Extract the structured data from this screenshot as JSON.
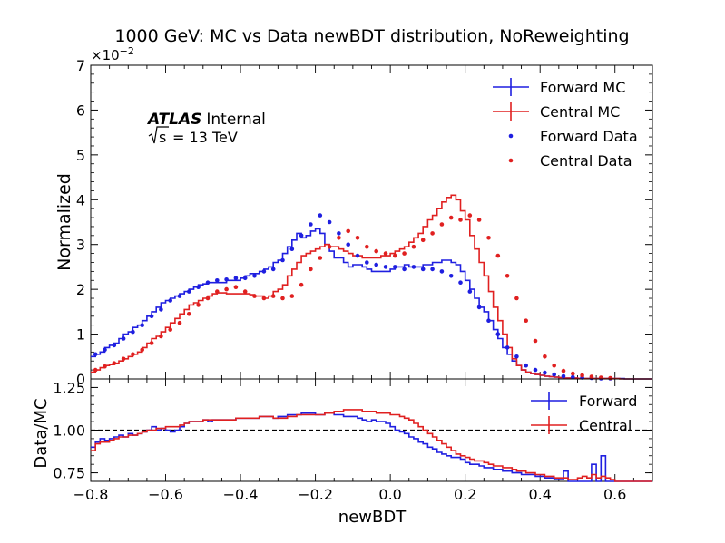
{
  "chart_data": [
    {
      "type": "line",
      "panel": "main",
      "title": "1000 GeV: MC vs Data newBDT distribution, NoReweighting",
      "xlabel": "newBDT",
      "ylabel": "Normalized",
      "scale_label": "×10",
      "scale_exponent": "−2",
      "xlim": [
        -0.8,
        0.7
      ],
      "ylim": [
        0,
        7
      ],
      "y_ticks": [
        "0",
        "1",
        "2",
        "3",
        "4",
        "5",
        "6",
        "7"
      ],
      "grid": false,
      "legend_position": "top-right",
      "annotation": {
        "experiment": "ATLAS",
        "status": "Internal",
        "sqrt_label": "s",
        "energy": "= 13 TeV"
      },
      "bin_edges": [
        -0.8,
        -0.7875,
        -0.775,
        -0.7625,
        -0.75,
        -0.7375,
        -0.725,
        -0.7125,
        -0.7,
        -0.6875,
        -0.675,
        -0.6625,
        -0.65,
        -0.6375,
        -0.625,
        -0.6125,
        -0.6,
        -0.5875,
        -0.575,
        -0.5625,
        -0.55,
        -0.5375,
        -0.525,
        -0.5125,
        -0.5,
        -0.4875,
        -0.475,
        -0.4625,
        -0.45,
        -0.4375,
        -0.425,
        -0.4125,
        -0.4,
        -0.3875,
        -0.375,
        -0.3625,
        -0.35,
        -0.3375,
        -0.325,
        -0.3125,
        -0.3,
        -0.2875,
        -0.275,
        -0.2625,
        -0.25,
        -0.2375,
        -0.225,
        -0.2125,
        -0.2,
        -0.1875,
        -0.175,
        -0.1625,
        -0.15,
        -0.1375,
        -0.125,
        -0.1125,
        -0.1,
        -0.0875,
        -0.075,
        -0.0625,
        -0.05,
        -0.0375,
        -0.025,
        -0.0125,
        0,
        0.0125,
        0.025,
        0.0375,
        0.05,
        0.0625,
        0.075,
        0.0875,
        0.1,
        0.1125,
        0.125,
        0.1375,
        0.15,
        0.1625,
        0.175,
        0.1875,
        0.2,
        0.2125,
        0.225,
        0.2375,
        0.25,
        0.2625,
        0.275,
        0.2875,
        0.3,
        0.3125,
        0.325,
        0.3375,
        0.35,
        0.3625,
        0.375,
        0.3875,
        0.4,
        0.4125,
        0.425,
        0.4375,
        0.45,
        0.4625,
        0.475,
        0.4875,
        0.5,
        0.5125,
        0.525,
        0.5375,
        0.55,
        0.5625,
        0.575,
        0.5875,
        0.6,
        0.6125,
        0.625,
        0.6375,
        0.65,
        0.6625,
        0.675,
        0.6875,
        0.7
      ],
      "series": [
        {
          "name": "Forward MC",
          "style": "step",
          "color": "#1f1fe0",
          "values": [
            0.5,
            0.55,
            0.6,
            0.7,
            0.75,
            0.8,
            0.9,
            1.0,
            1.05,
            1.15,
            1.2,
            1.3,
            1.4,
            1.5,
            1.6,
            1.7,
            1.75,
            1.8,
            1.85,
            1.9,
            1.95,
            2.0,
            2.05,
            2.1,
            2.12,
            2.15,
            2.15,
            2.15,
            2.15,
            2.2,
            2.2,
            2.2,
            2.25,
            2.3,
            2.35,
            2.35,
            2.4,
            2.45,
            2.5,
            2.6,
            2.65,
            2.8,
            2.95,
            3.1,
            3.25,
            3.15,
            3.2,
            3.3,
            3.35,
            3.25,
            3.0,
            2.85,
            2.7,
            2.7,
            2.6,
            2.5,
            2.55,
            2.55,
            2.5,
            2.45,
            2.4,
            2.4,
            2.4,
            2.4,
            2.45,
            2.5,
            2.5,
            2.55,
            2.5,
            2.5,
            2.5,
            2.55,
            2.55,
            2.6,
            2.6,
            2.65,
            2.65,
            2.6,
            2.55,
            2.4,
            2.2,
            2.0,
            1.8,
            1.6,
            1.5,
            1.3,
            1.1,
            0.9,
            0.7,
            0.55,
            0.4,
            0.3,
            0.2,
            0.15,
            0.12,
            0.1,
            0.08,
            0.06,
            0.05,
            0.04,
            0.03,
            0.02,
            0.02,
            0.02,
            0.01,
            0.01,
            0.01,
            0.01,
            0.01,
            0.01,
            0.01,
            0.01,
            0.01,
            0.01,
            0.0,
            0.0,
            0.0,
            0.0,
            0.0,
            0.0
          ]
        },
        {
          "name": "Central MC",
          "style": "step",
          "color": "#e02020",
          "values": [
            0.15,
            0.2,
            0.25,
            0.3,
            0.32,
            0.35,
            0.4,
            0.45,
            0.5,
            0.55,
            0.6,
            0.7,
            0.8,
            0.9,
            0.95,
            1.05,
            1.15,
            1.25,
            1.35,
            1.45,
            1.55,
            1.65,
            1.7,
            1.75,
            1.8,
            1.85,
            1.9,
            1.92,
            1.92,
            1.9,
            1.9,
            1.9,
            1.9,
            1.9,
            1.88,
            1.85,
            1.85,
            1.8,
            1.85,
            1.95,
            2.0,
            2.1,
            2.3,
            2.45,
            2.6,
            2.75,
            2.8,
            2.85,
            2.9,
            2.95,
            3.0,
            2.95,
            2.95,
            2.9,
            2.85,
            2.8,
            2.75,
            2.75,
            2.7,
            2.7,
            2.7,
            2.7,
            2.75,
            2.75,
            2.8,
            2.85,
            2.9,
            2.95,
            3.05,
            3.15,
            3.25,
            3.4,
            3.55,
            3.65,
            3.8,
            3.95,
            4.05,
            4.1,
            4.0,
            3.75,
            3.55,
            3.2,
            2.9,
            2.6,
            2.3,
            1.95,
            1.6,
            1.3,
            1.0,
            0.7,
            0.45,
            0.3,
            0.2,
            0.15,
            0.12,
            0.1,
            0.08,
            0.06,
            0.05,
            0.04,
            0.03,
            0.02,
            0.02,
            0.02,
            0.01,
            0.01,
            0.01,
            0.01,
            0.01,
            0.01,
            0.01,
            0.01,
            0.01,
            0.0,
            0.0,
            0.0,
            0.0,
            0.0,
            0.0,
            0.0
          ]
        },
        {
          "name": "Forward Data",
          "style": "points",
          "color": "#1f1fe0",
          "x": [
            -0.7875,
            -0.7625,
            -0.7375,
            -0.7125,
            -0.6875,
            -0.6625,
            -0.6375,
            -0.6125,
            -0.5875,
            -0.5625,
            -0.5375,
            -0.5125,
            -0.4875,
            -0.4625,
            -0.4375,
            -0.4125,
            -0.3875,
            -0.3625,
            -0.3375,
            -0.3125,
            -0.2875,
            -0.2625,
            -0.2375,
            -0.2125,
            -0.1875,
            -0.1625,
            -0.1375,
            -0.1125,
            -0.0875,
            -0.0625,
            -0.0375,
            -0.0125,
            0.0125,
            0.0375,
            0.0625,
            0.0875,
            0.1125,
            0.1375,
            0.1625,
            0.1875,
            0.2125,
            0.2375,
            0.2625,
            0.2875,
            0.3125,
            0.3375,
            0.3625,
            0.3875,
            0.4125,
            0.4375,
            0.4625,
            0.4875,
            0.5125,
            0.5375,
            0.5625,
            0.5875
          ],
          "y": [
            0.55,
            0.65,
            0.75,
            0.9,
            1.05,
            1.2,
            1.4,
            1.55,
            1.75,
            1.85,
            1.95,
            2.05,
            2.15,
            2.2,
            2.22,
            2.25,
            2.25,
            2.3,
            2.4,
            2.45,
            2.65,
            2.9,
            3.2,
            3.45,
            3.65,
            3.5,
            3.25,
            3.0,
            2.75,
            2.6,
            2.55,
            2.5,
            2.5,
            2.45,
            2.5,
            2.45,
            2.45,
            2.4,
            2.3,
            2.15,
            1.95,
            1.6,
            1.3,
            1.0,
            0.7,
            0.5,
            0.3,
            0.2,
            0.14,
            0.1,
            0.06,
            0.04,
            0.03,
            0.02,
            0.01,
            0.01
          ]
        },
        {
          "name": "Central Data",
          "style": "points",
          "color": "#e02020",
          "x": [
            -0.7875,
            -0.7625,
            -0.7375,
            -0.7125,
            -0.6875,
            -0.6625,
            -0.6375,
            -0.6125,
            -0.5875,
            -0.5625,
            -0.5375,
            -0.5125,
            -0.4875,
            -0.4625,
            -0.4375,
            -0.4125,
            -0.3875,
            -0.3625,
            -0.3375,
            -0.3125,
            -0.2875,
            -0.2625,
            -0.2375,
            -0.2125,
            -0.1875,
            -0.1625,
            -0.1375,
            -0.1125,
            -0.0875,
            -0.0625,
            -0.0375,
            -0.0125,
            0.0125,
            0.0375,
            0.0625,
            0.0875,
            0.1125,
            0.1375,
            0.1625,
            0.1875,
            0.2125,
            0.2375,
            0.2625,
            0.2875,
            0.3125,
            0.3375,
            0.3625,
            0.3875,
            0.4125,
            0.4375,
            0.4625,
            0.4875,
            0.5125,
            0.5375,
            0.5625,
            0.5875
          ],
          "y": [
            0.2,
            0.28,
            0.35,
            0.45,
            0.55,
            0.65,
            0.8,
            0.95,
            1.1,
            1.25,
            1.45,
            1.65,
            1.8,
            1.95,
            2.0,
            2.05,
            1.95,
            1.85,
            1.8,
            1.85,
            1.8,
            1.85,
            2.1,
            2.45,
            2.7,
            2.95,
            3.15,
            3.3,
            3.15,
            2.95,
            2.85,
            2.8,
            2.75,
            2.8,
            2.95,
            3.1,
            3.25,
            3.45,
            3.6,
            3.55,
            3.65,
            3.55,
            3.15,
            2.75,
            2.3,
            1.8,
            1.3,
            0.85,
            0.5,
            0.3,
            0.18,
            0.12,
            0.08,
            0.05,
            0.03,
            0.02
          ]
        }
      ]
    },
    {
      "type": "line",
      "panel": "ratio",
      "xlabel": "newBDT",
      "ylabel": "Data/MC",
      "xlim": [
        -0.8,
        0.7
      ],
      "ylim": [
        0.7,
        1.3
      ],
      "y_ticks": [
        "0.75",
        "1.00",
        "1.25"
      ],
      "x_ticks": [
        "−0.8",
        "−0.6",
        "−0.4",
        "−0.2",
        "0.0",
        "0.2",
        "0.4",
        "0.6"
      ],
      "reference_line": 1.0,
      "legend_position": "top-right",
      "series": [
        {
          "name": "Forward",
          "style": "step",
          "color": "#1f1fe0",
          "values": [
            0.9,
            0.93,
            0.95,
            0.94,
            0.95,
            0.96,
            0.97,
            0.96,
            0.98,
            0.97,
            0.98,
            0.99,
            1.0,
            1.02,
            1.0,
            1.01,
            1.0,
            0.99,
            1.0,
            1.02,
            1.04,
            1.05,
            1.05,
            1.05,
            1.06,
            1.05,
            1.06,
            1.06,
            1.06,
            1.06,
            1.06,
            1.07,
            1.07,
            1.07,
            1.07,
            1.07,
            1.08,
            1.08,
            1.08,
            1.07,
            1.08,
            1.08,
            1.09,
            1.09,
            1.09,
            1.1,
            1.1,
            1.1,
            1.09,
            1.09,
            1.1,
            1.1,
            1.09,
            1.09,
            1.08,
            1.08,
            1.08,
            1.07,
            1.06,
            1.05,
            1.06,
            1.05,
            1.05,
            1.04,
            1.02,
            1.0,
            0.99,
            0.98,
            0.96,
            0.95,
            0.93,
            0.92,
            0.9,
            0.89,
            0.87,
            0.86,
            0.85,
            0.84,
            0.84,
            0.83,
            0.81,
            0.8,
            0.8,
            0.79,
            0.78,
            0.78,
            0.77,
            0.77,
            0.76,
            0.76,
            0.75,
            0.75,
            0.74,
            0.74,
            0.74,
            0.73,
            0.73,
            0.72,
            0.72,
            0.71,
            0.71,
            0.76,
            0.7,
            0.7,
            0.7,
            0.7,
            0.7,
            0.8,
            0.7,
            0.85,
            0.7,
            0.7,
            0.7,
            0.7,
            0.7,
            0.7,
            0.7,
            0.7,
            0.7,
            0.7
          ]
        },
        {
          "name": "Central",
          "style": "step",
          "color": "#e02020",
          "values": [
            0.88,
            0.92,
            0.93,
            0.93,
            0.94,
            0.95,
            0.96,
            0.96,
            0.97,
            0.97,
            0.98,
            0.99,
            1.0,
            1.0,
            1.01,
            1.01,
            1.02,
            1.02,
            1.02,
            1.03,
            1.04,
            1.05,
            1.05,
            1.05,
            1.06,
            1.06,
            1.06,
            1.06,
            1.06,
            1.06,
            1.06,
            1.07,
            1.07,
            1.07,
            1.07,
            1.07,
            1.08,
            1.08,
            1.08,
            1.07,
            1.07,
            1.07,
            1.08,
            1.08,
            1.09,
            1.09,
            1.09,
            1.09,
            1.09,
            1.09,
            1.1,
            1.1,
            1.11,
            1.11,
            1.12,
            1.12,
            1.12,
            1.12,
            1.11,
            1.11,
            1.11,
            1.1,
            1.1,
            1.1,
            1.09,
            1.09,
            1.08,
            1.07,
            1.06,
            1.04,
            1.02,
            1.0,
            0.98,
            0.96,
            0.94,
            0.92,
            0.9,
            0.88,
            0.86,
            0.85,
            0.84,
            0.83,
            0.82,
            0.82,
            0.81,
            0.8,
            0.79,
            0.79,
            0.78,
            0.78,
            0.77,
            0.76,
            0.76,
            0.75,
            0.75,
            0.74,
            0.74,
            0.73,
            0.73,
            0.72,
            0.72,
            0.72,
            0.71,
            0.71,
            0.72,
            0.73,
            0.72,
            0.74,
            0.72,
            0.73,
            0.72,
            0.71,
            0.7,
            0.7,
            0.7,
            0.7,
            0.7,
            0.7,
            0.7,
            0.7
          ]
        }
      ]
    }
  ]
}
